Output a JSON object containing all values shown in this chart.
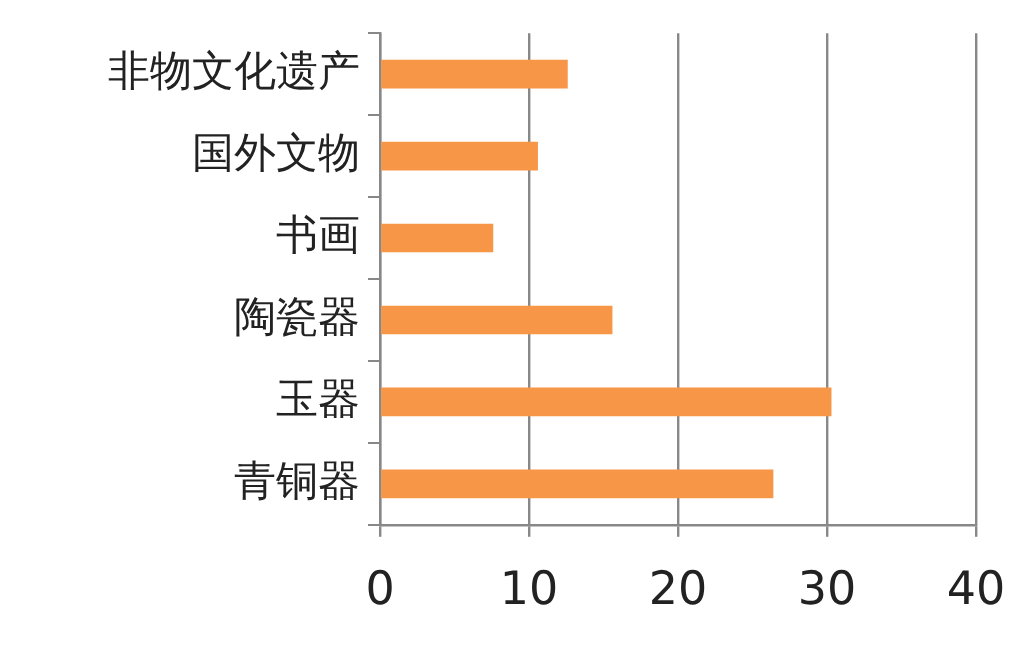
{
  "chart_data": {
    "type": "bar",
    "orientation": "horizontal",
    "categories": [
      "非物文化遗产",
      "国外文物",
      "书画",
      "陶瓷器",
      "玉器",
      "青铜器"
    ],
    "values": [
      12.6,
      10.6,
      7.6,
      15.6,
      30.3,
      26.4
    ],
    "color": "#f79646",
    "xlim": [
      0,
      40
    ],
    "xticks": [
      0,
      10,
      20,
      30,
      40
    ],
    "grid": "x",
    "legend": false
  }
}
